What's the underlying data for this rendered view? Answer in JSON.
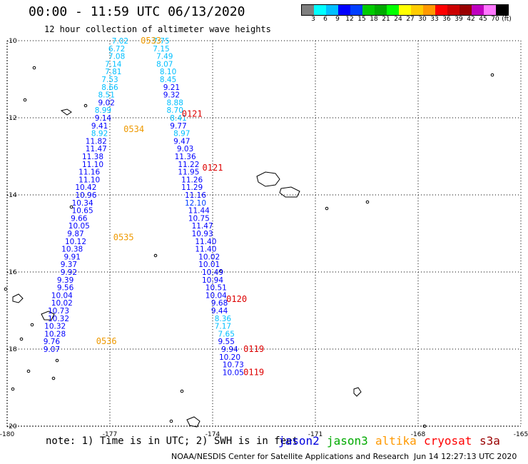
{
  "header": {
    "title": "00:00 - 11:59 UTC 06/13/2020",
    "subtitle": "12 hour collection of altimeter wave heights"
  },
  "colorbar": {
    "colors": [
      "#7f7f7f",
      "#00ffff",
      "#00bfff",
      "#0000ff",
      "#003fff",
      "#00cc00",
      "#00aa00",
      "#00ff00",
      "#ffff00",
      "#ffcc00",
      "#ff9900",
      "#ff0000",
      "#cc0000",
      "#990000",
      "#bf00bf",
      "#ff77ff",
      "#000000"
    ],
    "labels": [
      "3",
      "6",
      "9",
      "12",
      "15",
      "18",
      "21",
      "24",
      "27",
      "30",
      "33",
      "36",
      "39",
      "42",
      "45",
      "70"
    ],
    "unit": "(ft)"
  },
  "chart_data": {
    "type": "map",
    "xlim": [
      -180,
      -165
    ],
    "ylim": [
      -20,
      -10
    ],
    "x_ticks": [
      "-180",
      "-177",
      "-174",
      "-171",
      "-168",
      "-165"
    ],
    "y_ticks": [
      "-10",
      "-12",
      "-14",
      "-16",
      "-18",
      "-20"
    ],
    "grid": true,
    "tracks": [
      {
        "satellite": "jason2",
        "points": [
          {
            "lon": -176.7,
            "lat": -10.0,
            "swh": "7.02"
          },
          {
            "lon": -176.8,
            "lat": -10.2,
            "swh": "6.72"
          },
          {
            "lon": -176.8,
            "lat": -10.4,
            "swh": "7.08"
          },
          {
            "lon": -176.9,
            "lat": -10.6,
            "swh": "7.14"
          },
          {
            "lon": -176.9,
            "lat": -10.8,
            "swh": "7.81"
          },
          {
            "lon": -177.0,
            "lat": -11.0,
            "swh": "7.53"
          },
          {
            "lon": -177.0,
            "lat": -11.2,
            "swh": "8.66"
          },
          {
            "lon": -177.1,
            "lat": -11.4,
            "swh": "8.51"
          },
          {
            "lon": -177.1,
            "lat": -11.6,
            "swh": "9.02"
          },
          {
            "lon": -177.2,
            "lat": -11.8,
            "swh": "8.99"
          },
          {
            "lon": -177.2,
            "lat": -12.0,
            "swh": "9.14"
          },
          {
            "lon": -177.3,
            "lat": -12.2,
            "swh": "9.41"
          },
          {
            "lon": -177.3,
            "lat": -12.4,
            "swh": "8.92"
          },
          {
            "lon": -177.4,
            "lat": -12.6,
            "swh": "11.82"
          },
          {
            "lon": -177.4,
            "lat": -12.8,
            "swh": "11.47"
          },
          {
            "lon": -177.5,
            "lat": -13.0,
            "swh": "11.38"
          },
          {
            "lon": -177.5,
            "lat": -13.2,
            "swh": "11.10"
          },
          {
            "lon": -177.6,
            "lat": -13.4,
            "swh": "11.16"
          },
          {
            "lon": -177.6,
            "lat": -13.6,
            "swh": "11.10"
          },
          {
            "lon": -177.7,
            "lat": -13.8,
            "swh": "10.42"
          },
          {
            "lon": -177.7,
            "lat": -14.0,
            "swh": "10.96"
          },
          {
            "lon": -177.8,
            "lat": -14.2,
            "swh": "10.34"
          },
          {
            "lon": -177.8,
            "lat": -14.4,
            "swh": "10.65"
          },
          {
            "lon": -177.9,
            "lat": -14.6,
            "swh": "9.66"
          },
          {
            "lon": -177.9,
            "lat": -14.8,
            "swh": "10.05"
          },
          {
            "lon": -178.0,
            "lat": -15.0,
            "swh": "9.87"
          },
          {
            "lon": -178.0,
            "lat": -15.2,
            "swh": "10.12"
          },
          {
            "lon": -178.1,
            "lat": -15.4,
            "swh": "10.38"
          },
          {
            "lon": -178.1,
            "lat": -15.6,
            "swh": "9.91"
          },
          {
            "lon": -178.2,
            "lat": -15.8,
            "swh": "9.37"
          },
          {
            "lon": -178.2,
            "lat": -16.0,
            "swh": "9.92"
          },
          {
            "lon": -178.3,
            "lat": -16.2,
            "swh": "9.39"
          },
          {
            "lon": -178.3,
            "lat": -16.4,
            "swh": "9.56"
          },
          {
            "lon": -178.4,
            "lat": -16.6,
            "swh": "10.04"
          },
          {
            "lon": -178.4,
            "lat": -16.8,
            "swh": "10.02"
          },
          {
            "lon": -178.5,
            "lat": -17.0,
            "swh": "10.73"
          },
          {
            "lon": -178.5,
            "lat": -17.2,
            "swh": "10.32"
          },
          {
            "lon": -178.6,
            "lat": -17.4,
            "swh": "10.32"
          },
          {
            "lon": -178.6,
            "lat": -17.6,
            "swh": "10.28"
          },
          {
            "lon": -178.7,
            "lat": -17.8,
            "swh": "9.76"
          },
          {
            "lon": -178.7,
            "lat": -18.0,
            "swh": "9.07"
          },
          {
            "lon": -175.5,
            "lat": -10.0,
            "swh": "7.75"
          },
          {
            "lon": -175.5,
            "lat": -10.2,
            "swh": "7.15"
          },
          {
            "lon": -175.4,
            "lat": -10.4,
            "swh": "7.49"
          },
          {
            "lon": -175.4,
            "lat": -10.6,
            "swh": "8.07"
          },
          {
            "lon": -175.3,
            "lat": -10.8,
            "swh": "8.10"
          },
          {
            "lon": -175.3,
            "lat": -11.0,
            "swh": "8.45"
          },
          {
            "lon": -175.2,
            "lat": -11.2,
            "swh": "9.21"
          },
          {
            "lon": -175.2,
            "lat": -11.4,
            "swh": "9.32"
          },
          {
            "lon": -175.1,
            "lat": -11.6,
            "swh": "8.88"
          },
          {
            "lon": -175.1,
            "lat": -11.8,
            "swh": "8.70"
          },
          {
            "lon": -175.0,
            "lat": -12.0,
            "swh": "8.41"
          },
          {
            "lon": -175.0,
            "lat": -12.2,
            "swh": "9.77"
          },
          {
            "lon": -174.9,
            "lat": -12.4,
            "swh": "8.97"
          },
          {
            "lon": -174.9,
            "lat": -12.6,
            "swh": "9.47"
          },
          {
            "lon": -174.8,
            "lat": -12.8,
            "swh": "9.03"
          },
          {
            "lon": -174.8,
            "lat": -13.0,
            "swh": "11.36"
          },
          {
            "lon": -174.7,
            "lat": -13.2,
            "swh": "11.22"
          },
          {
            "lon": -174.7,
            "lat": -13.4,
            "swh": "11.95"
          },
          {
            "lon": -174.6,
            "lat": -13.6,
            "swh": "11.26"
          },
          {
            "lon": -174.6,
            "lat": -13.8,
            "swh": "11.29"
          },
          {
            "lon": -174.5,
            "lat": -14.0,
            "swh": "11.16"
          },
          {
            "lon": -174.5,
            "lat": -14.2,
            "swh": "12.10"
          },
          {
            "lon": -174.4,
            "lat": -14.4,
            "swh": "11.44"
          },
          {
            "lon": -174.4,
            "lat": -14.6,
            "swh": "10.75"
          },
          {
            "lon": -174.3,
            "lat": -14.8,
            "swh": "11.47"
          },
          {
            "lon": -174.3,
            "lat": -15.0,
            "swh": "10.93"
          },
          {
            "lon": -174.2,
            "lat": -15.2,
            "swh": "11.40"
          },
          {
            "lon": -174.2,
            "lat": -15.4,
            "swh": "11.40"
          },
          {
            "lon": -174.1,
            "lat": -15.6,
            "swh": "10.02"
          },
          {
            "lon": -174.1,
            "lat": -15.8,
            "swh": "10.01"
          },
          {
            "lon": -174.0,
            "lat": -16.0,
            "swh": "10.49"
          },
          {
            "lon": -174.0,
            "lat": -16.2,
            "swh": "10.94"
          },
          {
            "lon": -173.9,
            "lat": -16.4,
            "swh": "10.51"
          },
          {
            "lon": -173.9,
            "lat": -16.6,
            "swh": "10.04"
          },
          {
            "lon": -173.8,
            "lat": -16.8,
            "swh": "9.68"
          },
          {
            "lon": -173.8,
            "lat": -17.0,
            "swh": "9.44"
          },
          {
            "lon": -173.7,
            "lat": -17.2,
            "swh": "8.36"
          },
          {
            "lon": -173.7,
            "lat": -17.4,
            "swh": "7.17"
          },
          {
            "lon": -173.6,
            "lat": -17.6,
            "swh": "7.65"
          },
          {
            "lon": -173.6,
            "lat": -17.8,
            "swh": "9.55"
          },
          {
            "lon": -173.5,
            "lat": -18.0,
            "swh": "9.94"
          },
          {
            "lon": -173.5,
            "lat": -18.2,
            "swh": "10.20"
          },
          {
            "lon": -173.4,
            "lat": -18.4,
            "swh": "10.73"
          },
          {
            "lon": -173.4,
            "lat": -18.6,
            "swh": "10.05"
          }
        ]
      }
    ],
    "time_labels": [
      {
        "lon": -175.8,
        "lat": -10.0,
        "text": "0533"
      },
      {
        "lon": -174.6,
        "lat": -11.9,
        "text": "0121"
      },
      {
        "lon": -176.3,
        "lat": -12.3,
        "text": "0534"
      },
      {
        "lon": -174.0,
        "lat": -13.3,
        "text": "0121"
      },
      {
        "lon": -176.6,
        "lat": -15.1,
        "text": "0535"
      },
      {
        "lon": -173.3,
        "lat": -16.7,
        "text": "0120"
      },
      {
        "lon": -172.8,
        "lat": -18.0,
        "text": "0119"
      },
      {
        "lon": -172.8,
        "lat": -18.6,
        "text": "0119"
      },
      {
        "lon": -177.1,
        "lat": -17.8,
        "text": "0536"
      }
    ]
  },
  "footer": {
    "note": "note: 1) Time is in UTC; 2) SWH is in feet",
    "satellites": [
      {
        "name": "jason2",
        "color": "#0000dd"
      },
      {
        "name": "jason3",
        "color": "#00aa00"
      },
      {
        "name": "altika",
        "color": "#ff9900"
      },
      {
        "name": "cryosat",
        "color": "#ff0000"
      },
      {
        "name": "s3a",
        "color": "#990000"
      }
    ],
    "credit": "NOAA/NESDIS Center for Satellite Applications and Research",
    "timestamp": "Jun 14 12:27:13 UTC 2020"
  }
}
